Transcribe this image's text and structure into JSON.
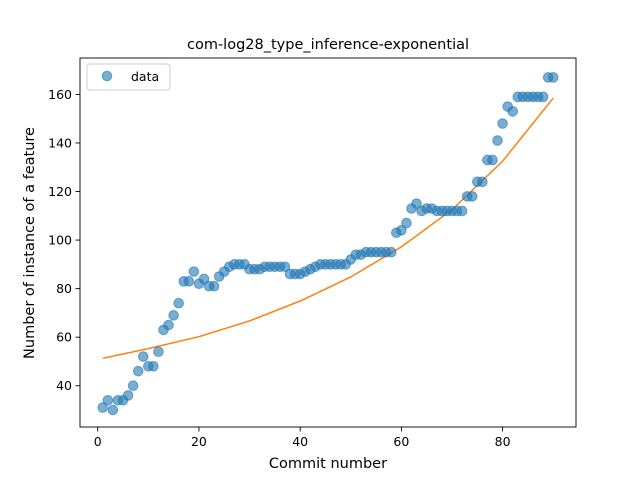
{
  "chart_data": {
    "type": "scatter",
    "title": "com-log28_type_inference-exponential",
    "xlabel": "Commit number",
    "ylabel": "Number of instance of a feature",
    "xlim": [
      -3.5,
      94.5
    ],
    "ylim": [
      23,
      175
    ],
    "xticks": [
      0,
      20,
      40,
      60,
      80
    ],
    "yticks": [
      40,
      60,
      80,
      100,
      120,
      140,
      160
    ],
    "grid": false,
    "legend": {
      "position": "top-left",
      "entries": [
        "data"
      ]
    },
    "colors": {
      "points": "#1f77b4",
      "fit": "#ff7f0e"
    },
    "series": [
      {
        "name": "data",
        "kind": "scatter",
        "x": [
          1,
          2,
          3,
          4,
          5,
          6,
          7,
          8,
          9,
          10,
          11,
          12,
          13,
          14,
          15,
          16,
          17,
          18,
          19,
          20,
          21,
          22,
          23,
          24,
          25,
          26,
          27,
          28,
          29,
          30,
          31,
          32,
          33,
          34,
          35,
          36,
          37,
          38,
          39,
          40,
          41,
          42,
          43,
          44,
          45,
          46,
          47,
          48,
          49,
          50,
          51,
          52,
          53,
          54,
          55,
          56,
          57,
          58,
          59,
          60,
          61,
          62,
          63,
          64,
          65,
          66,
          67,
          68,
          69,
          70,
          71,
          72,
          73,
          74,
          75,
          76,
          77,
          78,
          79,
          80,
          81,
          82,
          83,
          84,
          85,
          86,
          87,
          88,
          89,
          90
        ],
        "y": [
          31,
          34,
          30,
          34,
          34,
          36,
          40,
          46,
          52,
          48,
          48,
          54,
          63,
          65,
          69,
          74,
          83,
          83,
          87,
          82,
          84,
          81,
          81,
          85,
          87,
          89,
          90,
          90,
          90,
          88,
          88,
          88,
          89,
          89,
          89,
          89,
          89,
          86,
          86,
          86,
          87,
          88,
          89,
          90,
          90,
          90,
          90,
          90,
          90,
          92,
          94,
          94,
          95,
          95,
          95,
          95,
          95,
          95,
          103,
          104,
          107,
          113,
          115,
          112,
          113,
          113,
          112,
          112,
          112,
          112,
          112,
          112,
          118,
          118,
          124,
          124,
          133,
          133,
          141,
          148,
          155,
          153,
          159,
          159,
          159,
          159,
          159,
          159,
          167,
          167
        ]
      },
      {
        "name": "",
        "kind": "line",
        "x": [
          1,
          10,
          20,
          30,
          40,
          50,
          60,
          70,
          80,
          90
        ],
        "y": [
          51.3,
          55.3,
          60.2,
          66.7,
          74.9,
          84.8,
          97.2,
          112.5,
          132.5,
          158.5
        ]
      }
    ]
  }
}
